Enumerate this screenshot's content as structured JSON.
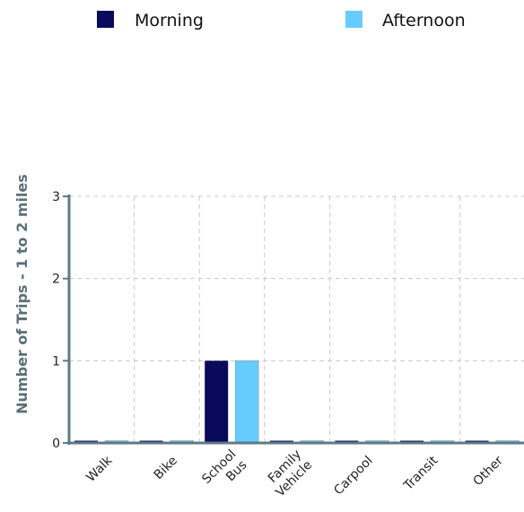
{
  "chart_data": {
    "type": "bar",
    "title": "",
    "xlabel": "",
    "ylabel": "Number of Trips - 1 to 2 miles",
    "categories": [
      "Walk",
      "Bike",
      "School Bus",
      "Family Vehicle",
      "Carpool",
      "Transit",
      "Other"
    ],
    "category_lines": [
      [
        "Walk"
      ],
      [
        "Bike"
      ],
      [
        "School",
        "Bus"
      ],
      [
        "Family",
        "Vehicle"
      ],
      [
        "Carpool"
      ],
      [
        "Transit"
      ],
      [
        "Other"
      ]
    ],
    "series": [
      {
        "name": "Morning",
        "color": "#0a0a5a",
        "values": [
          0,
          0,
          1,
          0,
          0,
          0,
          0
        ]
      },
      {
        "name": "Afternoon",
        "color": "#66ccff",
        "values": [
          0,
          0,
          1,
          0,
          0,
          0,
          0
        ]
      }
    ],
    "ylim": [
      0,
      3
    ],
    "yticks": [
      "0",
      "1",
      "2",
      "3"
    ],
    "grid": true,
    "legend_position": "top"
  }
}
